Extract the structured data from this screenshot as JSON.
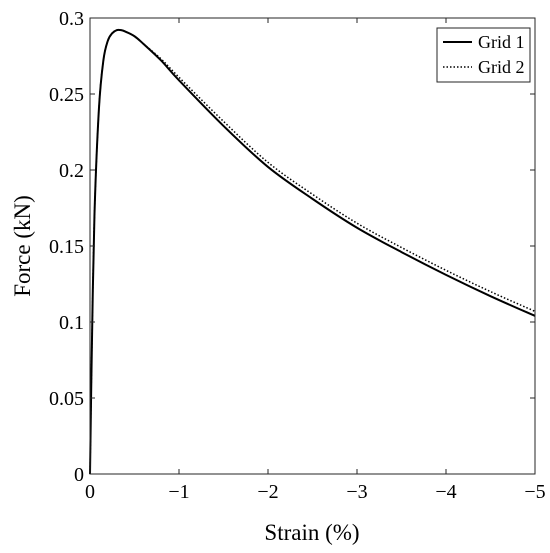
{
  "chart_data": {
    "type": "line",
    "xlabel": "Strain (%)",
    "ylabel": "Force (kN)",
    "xlim": [
      0,
      -5
    ],
    "ylim": [
      0,
      0.3
    ],
    "x_ticks": [
      0,
      -1,
      -2,
      -3,
      -4,
      -5
    ],
    "x_tick_labels": [
      "0",
      "−1",
      "−2",
      "−3",
      "−4",
      "−5"
    ],
    "y_ticks": [
      0,
      0.05,
      0.1,
      0.15,
      0.2,
      0.25,
      0.3
    ],
    "y_tick_labels": [
      "0",
      "0.05",
      "0.1",
      "0.15",
      "0.2",
      "0.25",
      "0.3"
    ],
    "grid": false,
    "legend_position": "top-right",
    "series": [
      {
        "name": "Grid 1",
        "style": "solid",
        "color": "#000000",
        "x": [
          0,
          -0.02,
          -0.05,
          -0.1,
          -0.15,
          -0.2,
          -0.25,
          -0.3,
          -0.35,
          -0.4,
          -0.5,
          -0.6,
          -0.8,
          -1.0,
          -1.5,
          -2.0,
          -2.5,
          -3.0,
          -3.5,
          -4.0,
          -4.5,
          -5.0
        ],
        "y": [
          0,
          0.08,
          0.17,
          0.24,
          0.272,
          0.285,
          0.29,
          0.292,
          0.292,
          0.291,
          0.288,
          0.283,
          0.272,
          0.259,
          0.229,
          0.202,
          0.181,
          0.162,
          0.146,
          0.131,
          0.117,
          0.104
        ]
      },
      {
        "name": "Grid 2",
        "style": "dotted",
        "color": "#000000",
        "x": [
          0,
          -0.02,
          -0.05,
          -0.1,
          -0.15,
          -0.2,
          -0.25,
          -0.3,
          -0.35,
          -0.4,
          -0.5,
          -0.6,
          -0.8,
          -1.0,
          -1.5,
          -2.0,
          -2.5,
          -3.0,
          -3.5,
          -4.0,
          -4.5,
          -5.0
        ],
        "y": [
          0,
          0.08,
          0.17,
          0.24,
          0.272,
          0.285,
          0.29,
          0.292,
          0.292,
          0.291,
          0.288,
          0.283,
          0.273,
          0.261,
          0.232,
          0.205,
          0.184,
          0.165,
          0.149,
          0.134,
          0.12,
          0.107
        ]
      }
    ]
  }
}
